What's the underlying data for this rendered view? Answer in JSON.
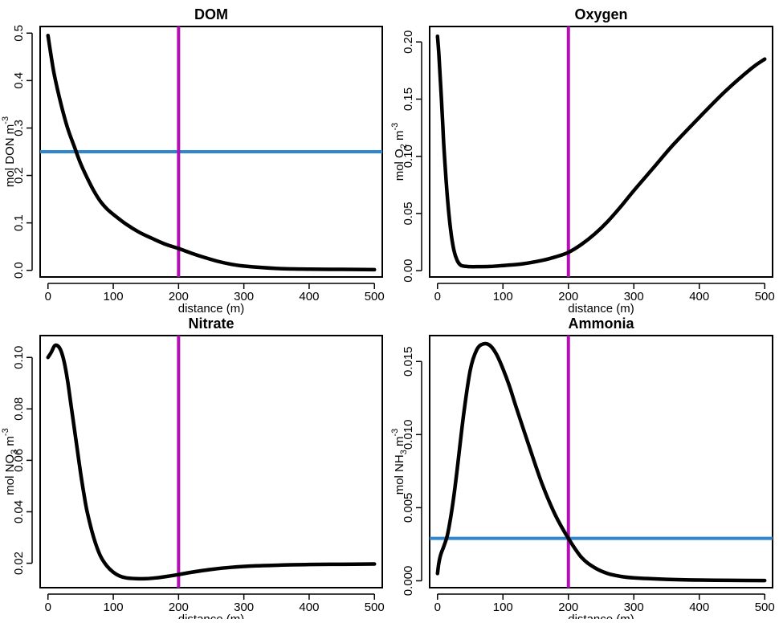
{
  "chart_data": [
    {
      "type": "line",
      "title": "DOM",
      "xlabel": "distance (m)",
      "ylabel": "mol DON m",
      "ylabel_sup": "-3",
      "xlim": [
        -12,
        512
      ],
      "ylim": [
        -0.014,
        0.514
      ],
      "xticks": [
        0,
        100,
        200,
        300,
        400,
        500
      ],
      "yticks": [
        0.0,
        0.1,
        0.2,
        0.3,
        0.4,
        0.5
      ],
      "ytick_labels": [
        "0.0",
        "0.1",
        "0.2",
        "0.3",
        "0.4",
        "0.5"
      ],
      "vline_x": 200,
      "hline_y": 0.25,
      "colors": {
        "curve": "#000000",
        "vline": "#b40fb4",
        "hline": "#2f86d0"
      },
      "series": [
        {
          "x": [
            0,
            5,
            10,
            20,
            30,
            40,
            50,
            60,
            70,
            80,
            90,
            100,
            120,
            140,
            160,
            180,
            200,
            220,
            240,
            260,
            280,
            300,
            350,
            400,
            450,
            500
          ],
          "values": [
            0.495,
            0.45,
            0.41,
            0.35,
            0.3,
            0.262,
            0.225,
            0.195,
            0.168,
            0.146,
            0.13,
            0.118,
            0.097,
            0.08,
            0.067,
            0.055,
            0.046,
            0.036,
            0.027,
            0.019,
            0.013,
            0.009,
            0.004,
            0.0025,
            0.002,
            0.0015
          ]
        }
      ]
    },
    {
      "type": "line",
      "title": "Oxygen",
      "xlabel": "distance (m)",
      "ylabel": "mol O",
      "ylabel_sub": "2",
      "ylabel_after": " m",
      "ylabel_sup": "-3",
      "xlim": [
        -12,
        512
      ],
      "ylim": [
        -0.0055,
        0.2135
      ],
      "xticks": [
        0,
        100,
        200,
        300,
        400,
        500
      ],
      "yticks": [
        0.0,
        0.05,
        0.1,
        0.15,
        0.2
      ],
      "ytick_labels": [
        "0.00",
        "0.05",
        "0.10",
        "0.15",
        "0.20"
      ],
      "vline_x": 200,
      "colors": {
        "curve": "#000000",
        "vline": "#b40fb4"
      },
      "series": [
        {
          "x": [
            0,
            2,
            4,
            6,
            8,
            10,
            15,
            20,
            25,
            30,
            35,
            40,
            45,
            50,
            60,
            80,
            100,
            130,
            160,
            180,
            200,
            220,
            240,
            260,
            280,
            300,
            330,
            360,
            400,
            440,
            480,
            500
          ],
          "values": [
            0.205,
            0.19,
            0.17,
            0.15,
            0.128,
            0.106,
            0.065,
            0.036,
            0.018,
            0.009,
            0.005,
            0.004,
            0.0037,
            0.0035,
            0.0035,
            0.0037,
            0.0045,
            0.006,
            0.009,
            0.012,
            0.016,
            0.023,
            0.032,
            0.043,
            0.056,
            0.07,
            0.09,
            0.11,
            0.134,
            0.157,
            0.177,
            0.185
          ]
        }
      ]
    },
    {
      "type": "line",
      "title": "Nitrate",
      "xlabel": "distance (m)",
      "ylabel": "mol NO",
      "ylabel_sub": "3",
      "ylabel_after": " m",
      "ylabel_sup": "-3",
      "xlim": [
        -12,
        512
      ],
      "ylim": [
        0.0105,
        0.1085
      ],
      "xticks": [
        0,
        100,
        200,
        300,
        400,
        500
      ],
      "yticks": [
        0.02,
        0.04,
        0.06,
        0.08,
        0.1
      ],
      "ytick_labels": [
        "0.02",
        "0.04",
        "0.06",
        "0.08",
        "0.10"
      ],
      "vline_x": 200,
      "colors": {
        "curve": "#000000",
        "vline": "#b40fb4"
      },
      "series": [
        {
          "x": [
            0,
            5,
            10,
            15,
            20,
            25,
            30,
            35,
            40,
            45,
            50,
            55,
            60,
            70,
            80,
            90,
            100,
            110,
            120,
            135,
            150,
            165,
            180,
            200,
            220,
            250,
            280,
            320,
            360,
            400,
            450,
            500
          ],
          "values": [
            0.1,
            0.102,
            0.1045,
            0.1045,
            0.1025,
            0.098,
            0.091,
            0.082,
            0.073,
            0.064,
            0.055,
            0.047,
            0.04,
            0.03,
            0.023,
            0.019,
            0.0165,
            0.015,
            0.0143,
            0.014,
            0.014,
            0.0143,
            0.0148,
            0.0156,
            0.0165,
            0.0176,
            0.0184,
            0.019,
            0.0193,
            0.0195,
            0.0196,
            0.0197
          ]
        }
      ]
    },
    {
      "type": "line",
      "title": "Ammonia",
      "xlabel": "distance (m)",
      "ylabel": "mol NH",
      "ylabel_sub": "3",
      "ylabel_after": " m",
      "ylabel_sup": "-3",
      "xlim": [
        -12,
        512
      ],
      "ylim": [
        -0.00047,
        0.01677
      ],
      "xticks": [
        0,
        100,
        200,
        300,
        400,
        500
      ],
      "yticks": [
        0.0,
        0.005,
        0.01,
        0.015
      ],
      "ytick_labels": [
        "0.000",
        "0.005",
        "0.010",
        "0.015"
      ],
      "vline_x": 200,
      "hline_y": 0.0029,
      "colors": {
        "curve": "#000000",
        "vline": "#b40fb4",
        "hline": "#2f86d0"
      },
      "series": [
        {
          "x": [
            0,
            2,
            5,
            10,
            15,
            20,
            25,
            30,
            40,
            50,
            60,
            70,
            80,
            90,
            100,
            110,
            120,
            140,
            160,
            180,
            200,
            220,
            240,
            260,
            280,
            300,
            350,
            400,
            450,
            500
          ],
          "values": [
            0.0005,
            0.0012,
            0.0018,
            0.0024,
            0.0031,
            0.0043,
            0.0058,
            0.0076,
            0.0114,
            0.0144,
            0.0158,
            0.0162,
            0.0161,
            0.0155,
            0.0145,
            0.0133,
            0.0119,
            0.0092,
            0.0066,
            0.0045,
            0.0029,
            0.0016,
            0.0009,
            0.0005,
            0.0003,
            0.0002,
            0.0001,
            5e-05,
            3e-05,
            2e-05
          ]
        }
      ]
    }
  ]
}
